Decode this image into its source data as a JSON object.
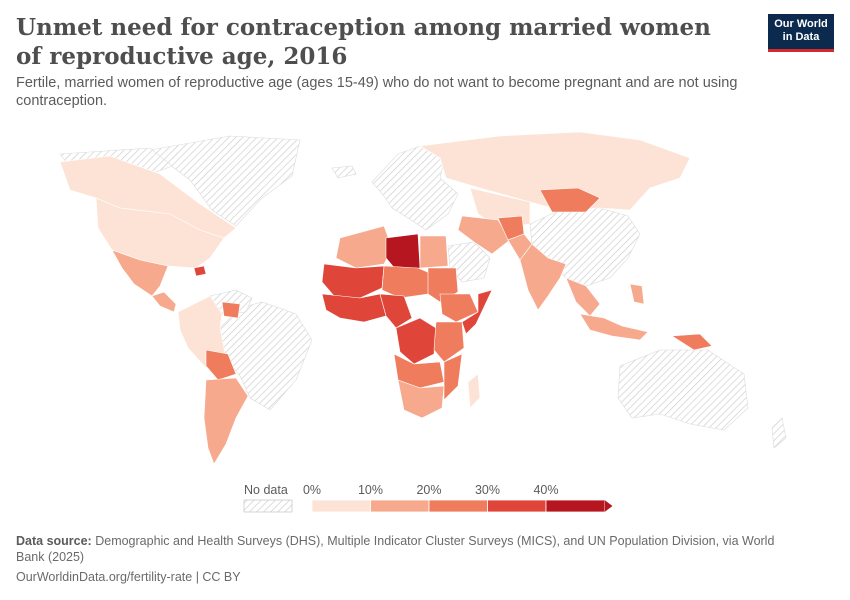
{
  "header": {
    "title": "Unmet need for contraception among married women of reproductive age, 2016",
    "subtitle": "Fertile, married women of reproductive age (ages 15-49) who do not want to become pregnant and are not using contraception."
  },
  "logo": {
    "line1": "Our World",
    "line2": "in Data"
  },
  "legend": {
    "no_data_label": "No data",
    "bins": [
      {
        "label": "0%",
        "color": "#fde3d6"
      },
      {
        "label": "10%",
        "color": "#f7a98e"
      },
      {
        "label": "20%",
        "color": "#f07c5e"
      },
      {
        "label": "30%",
        "color": "#e0453a"
      },
      {
        "label": "40%",
        "color": "#b5161f"
      }
    ],
    "tick_labels": [
      "0%",
      "10%",
      "20%",
      "30%",
      "40%"
    ]
  },
  "map_data": {
    "metric": "Unmet need for contraception (% of married women 15-49)",
    "year": 2016,
    "countries": [
      {
        "name": "Libya",
        "bin": 4
      },
      {
        "name": "Democratic Republic of Congo",
        "bin": 3
      },
      {
        "name": "Mali",
        "bin": 3
      },
      {
        "name": "Niger",
        "bin": 2
      },
      {
        "name": "Mauritania",
        "bin": 2
      },
      {
        "name": "Chad",
        "bin": 2
      },
      {
        "name": "Sudan",
        "bin": 2
      },
      {
        "name": "Ethiopia",
        "bin": 2
      },
      {
        "name": "Somalia",
        "bin": 3
      },
      {
        "name": "Kenya",
        "bin": 2
      },
      {
        "name": "Tanzania",
        "bin": 2
      },
      {
        "name": "Mozambique",
        "bin": 2
      },
      {
        "name": "Angola",
        "bin": 2
      },
      {
        "name": "Zambia",
        "bin": 1
      },
      {
        "name": "South Africa",
        "bin": 1
      },
      {
        "name": "Nigeria",
        "bin": 2
      },
      {
        "name": "Cameroon",
        "bin": 3
      },
      {
        "name": "Algeria",
        "bin": 1
      },
      {
        "name": "Egypt",
        "bin": 1
      },
      {
        "name": "Mongolia",
        "bin": 2
      },
      {
        "name": "Afghanistan",
        "bin": 2
      },
      {
        "name": "India",
        "bin": 1
      },
      {
        "name": "Pakistan",
        "bin": 1
      },
      {
        "name": "Iran",
        "bin": 1
      },
      {
        "name": "Russia",
        "bin": 0
      },
      {
        "name": "Kazakhstan",
        "bin": 0
      },
      {
        "name": "Papua New Guinea",
        "bin": 2
      },
      {
        "name": "Indonesia",
        "bin": 1
      },
      {
        "name": "Philippines",
        "bin": 1
      },
      {
        "name": "United States",
        "bin": 0
      },
      {
        "name": "Canada",
        "bin": 0
      },
      {
        "name": "Mexico",
        "bin": 1
      },
      {
        "name": "Haiti",
        "bin": 3
      },
      {
        "name": "Guyana",
        "bin": 2
      },
      {
        "name": "Bolivia",
        "bin": 2
      },
      {
        "name": "Argentina",
        "bin": 1
      },
      {
        "name": "Colombia",
        "bin": 0
      },
      {
        "name": "Peru",
        "bin": 0
      }
    ]
  },
  "footer": {
    "source_label": "Data source:",
    "source_text": "Demographic and Health Surveys (DHS), Multiple Indicator Cluster Surveys (MICS), and UN Population Division, via World Bank (2025)",
    "url": "OurWorldinData.org/fertility-rate | CC BY"
  }
}
